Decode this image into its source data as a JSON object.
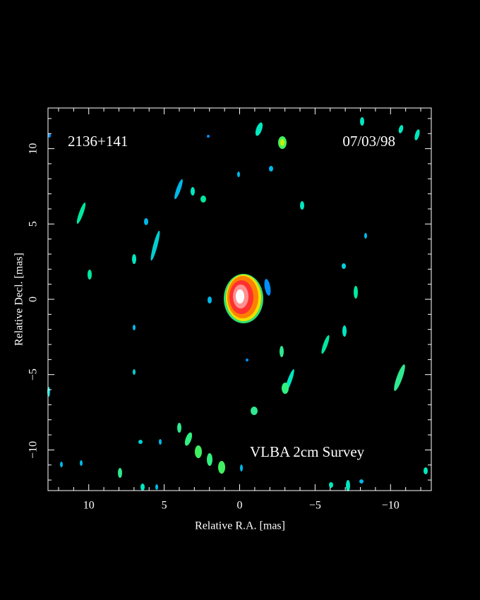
{
  "chart_data": {
    "type": "image",
    "title": "2136+141",
    "date": "07/03/98",
    "annotation": "VLBA 2cm Survey",
    "x_label": "Relative R.A. [mas]",
    "y_label": "Relative Decl. [mas]",
    "xlim": [
      12.7,
      -12.7
    ],
    "ylim": [
      -12.7,
      12.7
    ],
    "xticks": [
      10,
      5,
      0,
      {
        "value": -5,
        "label": "−5"
      },
      {
        "value": -10,
        "label": "−10"
      }
    ],
    "yticks": [
      {
        "value": -10,
        "label": "−10"
      },
      {
        "value": -5,
        "label": "−5"
      },
      0,
      5,
      10
    ],
    "xminorticks": [
      12,
      11,
      9,
      8,
      7,
      6,
      4,
      3,
      2,
      1,
      -1,
      -2,
      -3,
      -4,
      -6,
      -7,
      -8,
      -9,
      -11,
      -12
    ],
    "yminorticks": [
      -12,
      -11,
      -9,
      -8,
      -7,
      -6,
      -4,
      -3,
      -2,
      -1,
      1,
      2,
      3,
      4,
      6,
      7,
      8,
      9,
      11,
      12
    ]
  }
}
